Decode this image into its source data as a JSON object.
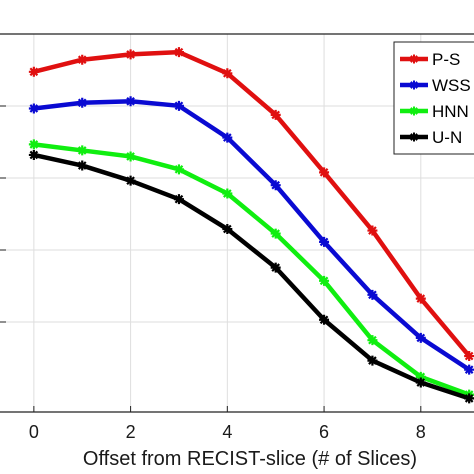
{
  "chart_data": {
    "type": "line",
    "xlabel": "Offset from RECIST-slice (# of Slices)",
    "ylabel": "",
    "title": "",
    "x": [
      0,
      1,
      2,
      3,
      4,
      5,
      6,
      7,
      8,
      9
    ],
    "xticks": [
      "0",
      "2",
      "4",
      "6",
      "8"
    ],
    "xtick_values": [
      0,
      2,
      4,
      6,
      8
    ],
    "xlim": [
      -0.7,
      9.1
    ],
    "ylim": [
      0,
      1
    ],
    "grid": true,
    "legend_position": "top-right",
    "series": [
      {
        "name": "P-S",
        "color": "#e01010",
        "values": [
          0.9,
          0.932,
          0.946,
          0.952,
          0.896,
          0.786,
          0.634,
          0.48,
          0.3,
          0.148
        ]
      },
      {
        "name": "WSS",
        "color": "#0a0ad2",
        "values": [
          0.803,
          0.818,
          0.822,
          0.81,
          0.726,
          0.6,
          0.45,
          0.31,
          0.196,
          0.112
        ]
      },
      {
        "name": "HNN",
        "color": "#10ee10",
        "values": [
          0.708,
          0.692,
          0.676,
          0.642,
          0.578,
          0.472,
          0.347,
          0.19,
          0.093,
          0.046
        ]
      },
      {
        "name": "U-N",
        "color": "#000000",
        "values": [
          0.68,
          0.652,
          0.612,
          0.563,
          0.484,
          0.382,
          0.244,
          0.136,
          0.078,
          0.036
        ]
      }
    ]
  }
}
